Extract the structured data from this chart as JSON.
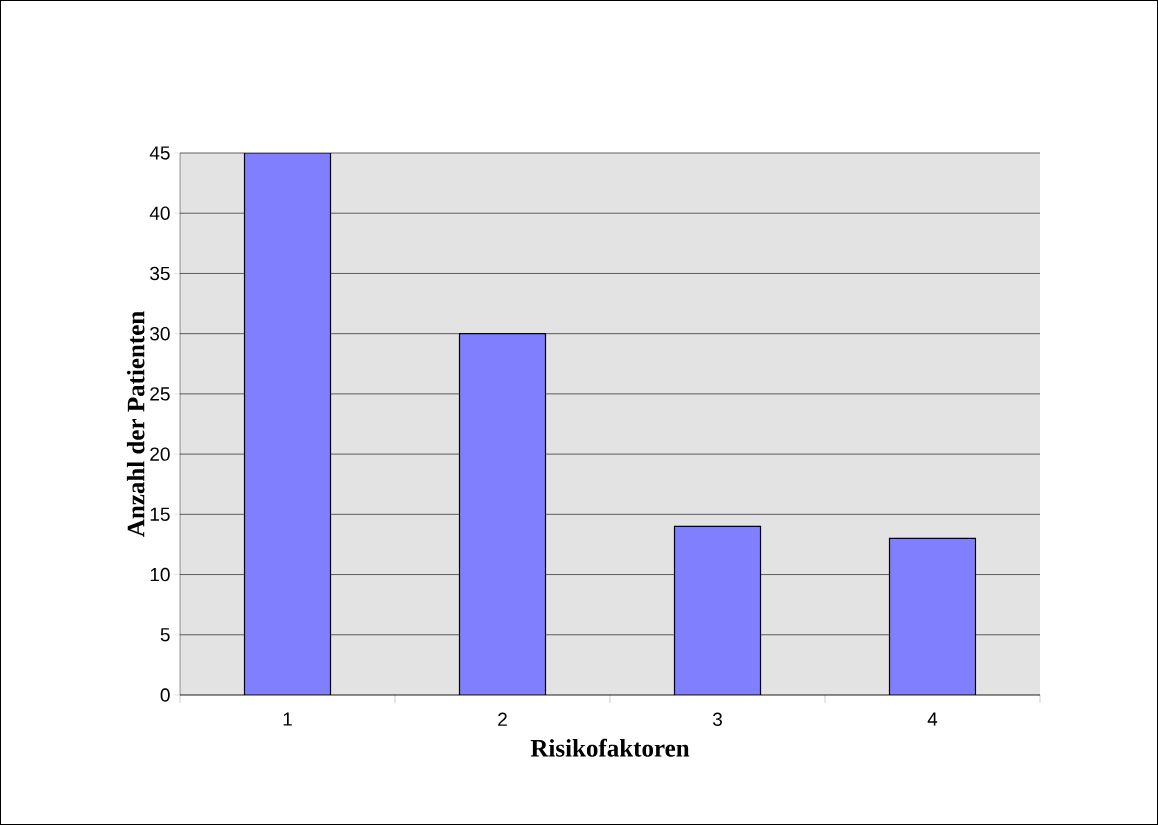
{
  "chart_data": {
    "type": "bar",
    "xlabel": "Risikofaktoren",
    "ylabel": "Anzahl der Patienten",
    "categories": [
      "1",
      "2",
      "3",
      "4"
    ],
    "values": [
      45,
      30,
      14,
      13
    ],
    "color": "#8080ff",
    "ylim": [
      0,
      45
    ],
    "yticks": [
      0,
      5,
      10,
      15,
      20,
      25,
      30,
      35,
      40,
      45
    ],
    "grid": "y"
  }
}
